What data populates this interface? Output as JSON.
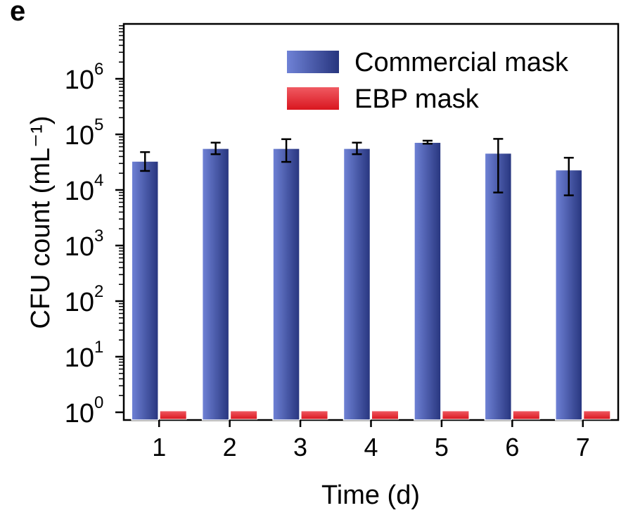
{
  "panel_label": "e",
  "chart_data": {
    "type": "bar",
    "categories": [
      "1",
      "2",
      "3",
      "4",
      "5",
      "6",
      "7"
    ],
    "xlabel": "Time (d)",
    "ylabel": "CFU count (mL⁻¹)",
    "yscale": "log",
    "ylim": [
      1,
      10000000
    ],
    "ytick_labels": [
      {
        "value": 1,
        "base": "10",
        "exp": "0"
      },
      {
        "value": 10,
        "base": "10",
        "exp": "1"
      },
      {
        "value": 100,
        "base": "10",
        "exp": "2"
      },
      {
        "value": 1000,
        "base": "10",
        "exp": "3"
      },
      {
        "value": 10000,
        "base": "10",
        "exp": "4"
      },
      {
        "value": 100000,
        "base": "10",
        "exp": "5"
      },
      {
        "value": 1000000,
        "base": "10",
        "exp": "6"
      }
    ],
    "legend_position": "top-right",
    "series": [
      {
        "name": "Commercial mask",
        "color": "#2e3f8f",
        "values": [
          33000,
          56000,
          56000,
          56000,
          72000,
          46000,
          23000
        ],
        "error_low": [
          22000,
          44000,
          32000,
          44000,
          68000,
          9000,
          8000
        ],
        "error_high": [
          48000,
          71000,
          82000,
          71000,
          77000,
          83000,
          38000
        ]
      },
      {
        "name": "EBP mask",
        "color": "#e8313a",
        "values": [
          1,
          1,
          1,
          1,
          1,
          1,
          1
        ]
      }
    ]
  }
}
